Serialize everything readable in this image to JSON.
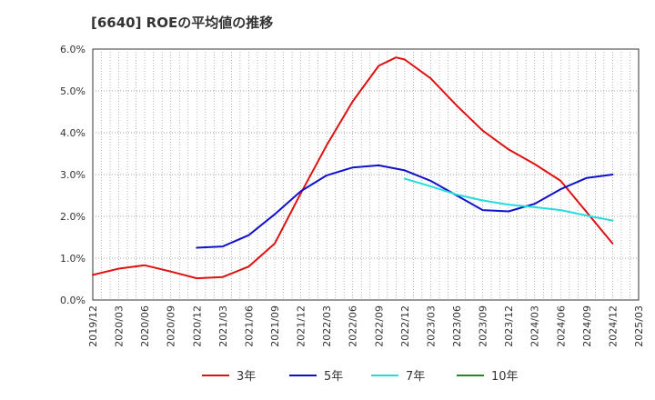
{
  "chart_data": {
    "type": "line",
    "title": "[6640]  ROEの平均値の推移",
    "xlabel": "",
    "ylabel": "",
    "ylim": [
      0,
      6
    ],
    "y_ticks": [
      "0.0%",
      "1.0%",
      "2.0%",
      "3.0%",
      "4.0%",
      "5.0%",
      "6.0%"
    ],
    "x_ticks": [
      "2019/12",
      "2020/03",
      "2020/06",
      "2020/09",
      "2020/12",
      "2021/03",
      "2021/06",
      "2021/09",
      "2021/12",
      "2022/03",
      "2022/06",
      "2022/09",
      "2022/12",
      "2023/03",
      "2023/06",
      "2023/09",
      "2023/12",
      "2024/03",
      "2024/06",
      "2024/09",
      "2024/12",
      "2025/03"
    ],
    "grid": true,
    "legend_position": "bottom",
    "series": [
      {
        "name": "3年",
        "color": "#dd1111",
        "points": [
          [
            "2019/12",
            0.6
          ],
          [
            "2020/03",
            0.75
          ],
          [
            "2020/06",
            0.83
          ],
          [
            "2020/09",
            0.68
          ],
          [
            "2020/12",
            0.52
          ],
          [
            "2021/03",
            0.55
          ],
          [
            "2021/06",
            0.8
          ],
          [
            "2021/09",
            1.35
          ],
          [
            "2021/12",
            2.55
          ],
          [
            "2022/03",
            3.7
          ],
          [
            "2022/06",
            4.75
          ],
          [
            "2022/09",
            5.6
          ],
          [
            "2022/11",
            5.8
          ],
          [
            "2022/12",
            5.75
          ],
          [
            "2023/03",
            5.3
          ],
          [
            "2023/06",
            4.65
          ],
          [
            "2023/09",
            4.05
          ],
          [
            "2023/12",
            3.6
          ],
          [
            "2024/03",
            3.25
          ],
          [
            "2024/06",
            2.85
          ],
          [
            "2024/09",
            2.1
          ],
          [
            "2024/12",
            1.35
          ]
        ]
      },
      {
        "name": "5年",
        "color": "#1111cc",
        "points": [
          [
            "2020/12",
            1.25
          ],
          [
            "2021/03",
            1.28
          ],
          [
            "2021/06",
            1.55
          ],
          [
            "2021/09",
            2.05
          ],
          [
            "2021/12",
            2.6
          ],
          [
            "2022/03",
            2.98
          ],
          [
            "2022/06",
            3.17
          ],
          [
            "2022/09",
            3.22
          ],
          [
            "2022/12",
            3.1
          ],
          [
            "2023/03",
            2.85
          ],
          [
            "2023/06",
            2.5
          ],
          [
            "2023/09",
            2.15
          ],
          [
            "2023/12",
            2.12
          ],
          [
            "2024/03",
            2.3
          ],
          [
            "2024/06",
            2.65
          ],
          [
            "2024/09",
            2.92
          ],
          [
            "2024/12",
            3.0
          ]
        ]
      },
      {
        "name": "7年",
        "color": "#22dddd",
        "points": [
          [
            "2022/12",
            2.9
          ],
          [
            "2023/03",
            2.72
          ],
          [
            "2023/06",
            2.52
          ],
          [
            "2023/09",
            2.38
          ],
          [
            "2023/12",
            2.28
          ],
          [
            "2024/03",
            2.22
          ],
          [
            "2024/06",
            2.15
          ],
          [
            "2024/09",
            2.02
          ],
          [
            "2024/12",
            1.9
          ]
        ]
      },
      {
        "name": "10年",
        "color": "#228822",
        "points": []
      }
    ]
  }
}
